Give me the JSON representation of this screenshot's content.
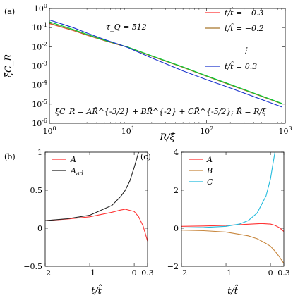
{
  "chart_data": [
    {
      "panel_label": "(a)",
      "type": "line",
      "xscale": "log",
      "yscale": "log",
      "xlim": [
        1,
        1000
      ],
      "ylim": [
        1e-06,
        1
      ],
      "xticks": [
        {
          "v": 1,
          "b": "10",
          "e": "0"
        },
        {
          "v": 10,
          "b": "10",
          "e": "1"
        },
        {
          "v": 100,
          "b": "10",
          "e": "2"
        },
        {
          "v": 1000,
          "b": "10",
          "e": "3"
        }
      ],
      "yticks": [
        {
          "v": 1,
          "b": "10",
          "e": "0"
        },
        {
          "v": 0.1,
          "b": "10",
          "e": "-1"
        },
        {
          "v": 0.01,
          "b": "10",
          "e": "-2"
        },
        {
          "v": 0.001,
          "b": "10",
          "e": "-3"
        },
        {
          "v": 0.0001,
          "b": "10",
          "e": "-4"
        },
        {
          "v": 1e-05,
          "b": "10",
          "e": "-5"
        },
        {
          "v": 1e-06,
          "b": "10",
          "e": "-6"
        }
      ],
      "xlabel": "R/ξ̂",
      "ylabel": "ξ̂C_R",
      "annotation_tau": "τ_Q = 512",
      "formula": "ξ̂C_R = AR̃^{-3/2} + BR̃^{-2} + CR̃^{-5/2}; R̃ = R/ξ̂",
      "legend_position": "top-right",
      "legend_ellipsis": "⋮",
      "series": [
        {
          "name": "t/t̂ = −0.3",
          "color": "#ff3333",
          "x": [
            1,
            2,
            3,
            5,
            8,
            10,
            20,
            50,
            100,
            200,
            500,
            900
          ],
          "y": [
            0.16,
            0.07,
            0.04,
            0.021,
            0.012,
            0.0095,
            0.0033,
            0.00085,
            0.00029,
            0.000104,
            2.65e-05,
            1.08e-05
          ]
        },
        {
          "name": "t/t̂ = −0.2",
          "color": "#a6762b",
          "x": [
            1,
            2,
            3,
            5,
            8,
            10,
            20,
            50,
            100,
            200,
            500,
            900
          ],
          "y": [
            0.17,
            0.072,
            0.041,
            0.021,
            0.012,
            0.0094,
            0.0032,
            0.00083,
            0.000285,
            0.0001,
            2.55e-05,
            1.05e-05
          ]
        },
        {
          "name": "",
          "color": "#00cc33",
          "x": [
            1,
            2,
            3,
            5,
            8,
            10,
            20,
            50,
            100,
            200,
            500,
            900
          ],
          "y": [
            0.2,
            0.08,
            0.045,
            0.022,
            0.0125,
            0.0095,
            0.0034,
            0.00088,
            0.0003,
            0.000108,
            2.7e-05,
            1.1e-05
          ]
        },
        {
          "name": "t/t̂ = 0.3",
          "color": "#1a33cc",
          "x": [
            1,
            2,
            3,
            5,
            8,
            10,
            20,
            50,
            100,
            200,
            500,
            900
          ],
          "y": [
            0.25,
            0.1,
            0.052,
            0.024,
            0.0125,
            0.009,
            0.0026,
            0.00055,
            0.00019,
            7e-05,
            1.75e-05,
            7.2e-06
          ]
        }
      ]
    },
    {
      "panel_label": "(b)",
      "type": "line",
      "xlim": [
        -2,
        0.3
      ],
      "ylim": [
        -0.5,
        1
      ],
      "xticks": [
        {
          "v": -2,
          "t": "−2"
        },
        {
          "v": -1,
          "t": "−1"
        },
        {
          "v": 0,
          "t": "0"
        },
        {
          "v": 0.3,
          "t": "0.3"
        }
      ],
      "yticks": [
        {
          "v": -0.5,
          "t": "−0.5"
        },
        {
          "v": 0,
          "t": "0"
        },
        {
          "v": 0.5,
          "t": "0.5"
        },
        {
          "v": 1,
          "t": "1"
        }
      ],
      "xlabel": "t/t̂",
      "ylabel": "",
      "legend_position": "top-left",
      "series": [
        {
          "name": "A",
          "color": "#ff3333",
          "x": [
            -2,
            -1.5,
            -1.0,
            -0.5,
            -0.3,
            -0.2,
            0.0,
            0.1,
            0.2,
            0.3
          ],
          "y": [
            0.1,
            0.12,
            0.15,
            0.21,
            0.24,
            0.25,
            0.22,
            0.15,
            0.03,
            -0.17
          ]
        },
        {
          "name": "A_ad",
          "color": "#222222",
          "x": [
            -2,
            -1.5,
            -1.0,
            -0.5,
            -0.3,
            -0.2,
            -0.1,
            0.0,
            0.05,
            0.1
          ],
          "y": [
            0.1,
            0.125,
            0.17,
            0.3,
            0.42,
            0.5,
            0.62,
            0.8,
            0.9,
            1.0
          ]
        }
      ]
    },
    {
      "panel_label": "(c)",
      "type": "line",
      "xlim": [
        -2,
        0.3
      ],
      "ylim": [
        -2,
        4
      ],
      "xticks": [
        {
          "v": -2,
          "t": "−2"
        },
        {
          "v": -1,
          "t": "−1"
        },
        {
          "v": 0,
          "t": "0"
        },
        {
          "v": 0.3,
          "t": "0.3"
        }
      ],
      "yticks": [
        {
          "v": -2,
          "t": "−2"
        },
        {
          "v": 0,
          "t": "0"
        },
        {
          "v": 2,
          "t": "2"
        },
        {
          "v": 4,
          "t": "4"
        }
      ],
      "xlabel": "t/t̂",
      "ylabel": "",
      "legend_position": "top-left",
      "series": [
        {
          "name": "A",
          "color": "#ff3333",
          "x": [
            -2,
            -1.5,
            -1.0,
            -0.5,
            -0.2,
            0.0,
            0.1,
            0.2,
            0.3
          ],
          "y": [
            0.1,
            0.12,
            0.15,
            0.21,
            0.25,
            0.22,
            0.15,
            0.03,
            -0.17
          ]
        },
        {
          "name": "B",
          "color": "#c8873e",
          "x": [
            -2,
            -1.5,
            -1.0,
            -0.5,
            -0.3,
            -0.1,
            0.0,
            0.1,
            0.2,
            0.3
          ],
          "y": [
            -0.1,
            -0.13,
            -0.2,
            -0.4,
            -0.55,
            -0.8,
            -0.95,
            -1.2,
            -1.5,
            -1.85
          ]
        },
        {
          "name": "C",
          "color": "#22bbdd",
          "x": [
            -2,
            -1.5,
            -1.0,
            -0.7,
            -0.5,
            -0.3,
            -0.1,
            0.0,
            0.05,
            0.1
          ],
          "y": [
            0.02,
            0.04,
            0.1,
            0.22,
            0.4,
            0.8,
            1.7,
            2.6,
            3.3,
            4.0
          ]
        }
      ]
    }
  ]
}
